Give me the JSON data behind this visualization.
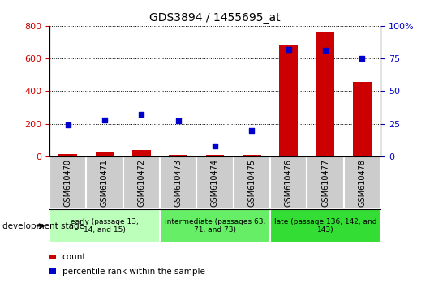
{
  "title": "GDS3894 / 1455695_at",
  "samples": [
    "GSM610470",
    "GSM610471",
    "GSM610472",
    "GSM610473",
    "GSM610474",
    "GSM610475",
    "GSM610476",
    "GSM610477",
    "GSM610478"
  ],
  "counts": [
    15,
    25,
    38,
    12,
    12,
    10,
    682,
    758,
    455
  ],
  "percentile_ranks": [
    24,
    28,
    32,
    27,
    8,
    20,
    82,
    81,
    75
  ],
  "ylim_left": [
    0,
    800
  ],
  "ylim_right": [
    0,
    100
  ],
  "yticks_left": [
    0,
    200,
    400,
    600,
    800
  ],
  "yticks_right": [
    0,
    25,
    50,
    75,
    100
  ],
  "groups": [
    {
      "label": "early (passage 13,\n14, and 15)",
      "start": 0,
      "end": 3,
      "color": "#bbffbb"
    },
    {
      "label": "intermediate (passages 63,\n71, and 73)",
      "start": 3,
      "end": 6,
      "color": "#66ee66"
    },
    {
      "label": "late (passage 136, 142, and\n143)",
      "start": 6,
      "end": 9,
      "color": "#33dd33"
    }
  ],
  "bar_color": "#cc0000",
  "dot_color": "#0000cc",
  "left_axis_color": "#cc0000",
  "right_axis_color": "#0000cc",
  "grid_color": "#000000",
  "sample_bg_color": "#cccccc",
  "development_stage_label": "development stage",
  "legend_count_label": "count",
  "legend_percentile_label": "percentile rank within the sample"
}
